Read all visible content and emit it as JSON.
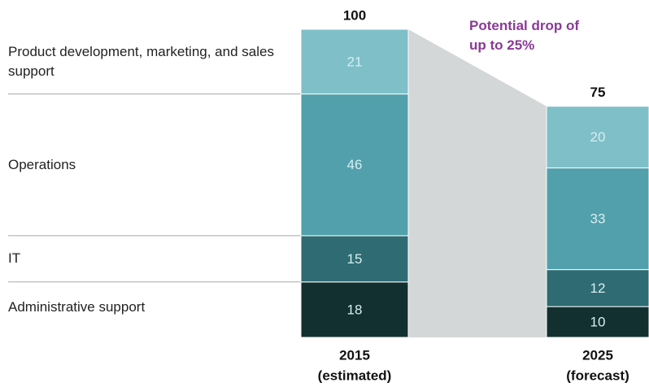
{
  "chart_data": {
    "type": "stacked-bar",
    "categories": [
      "2015",
      "2025"
    ],
    "category_notes": [
      "(estimated)",
      "(forecast)"
    ],
    "totals": [
      100,
      75
    ],
    "annotation": "Potential drop of up to 25%",
    "annotation_color": "#8a3a96",
    "connector_color": "#d4d7d7",
    "series": [
      {
        "name": "Administrative support",
        "color": "#12302f",
        "values": [
          18,
          10
        ]
      },
      {
        "name": "IT",
        "color": "#2e6b73",
        "values": [
          15,
          12
        ]
      },
      {
        "name": "Operations",
        "color": "#52a0ab",
        "values": [
          46,
          33
        ]
      },
      {
        "name": "Product development, marketing, and sales support",
        "color": "#7fbfc8",
        "values": [
          21,
          20
        ]
      }
    ]
  }
}
